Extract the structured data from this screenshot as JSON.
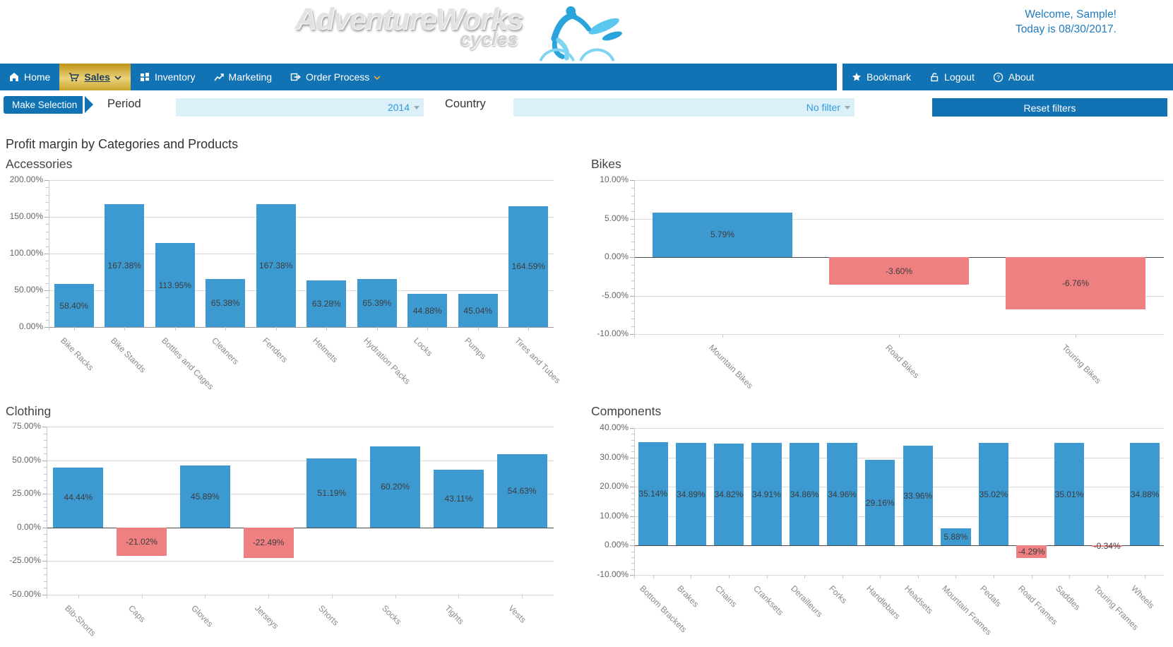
{
  "header": {
    "logo_primary": "AdventureWorks",
    "logo_secondary": "cycles",
    "welcome_line1": "Welcome, Sample!",
    "welcome_line2": "Today is 08/30/2017."
  },
  "nav": {
    "left": [
      {
        "label": "Home",
        "icon": "home-icon"
      },
      {
        "label": "Sales",
        "icon": "cart-icon"
      },
      {
        "label": "Inventory",
        "icon": "grid-icon"
      },
      {
        "label": "Marketing",
        "icon": "trend-icon"
      },
      {
        "label": "Order Process",
        "icon": "order-icon"
      }
    ],
    "right": [
      {
        "label": "Bookmark",
        "icon": "star-icon"
      },
      {
        "label": "Logout",
        "icon": "lock-icon"
      },
      {
        "label": "About",
        "icon": "question-icon"
      }
    ]
  },
  "filters": {
    "make_selection": "Make Selection",
    "period_label": "Period",
    "period_value": "2014",
    "country_label": "Country",
    "country_value": "No filter",
    "reset_label": "Reset filters"
  },
  "page_title": "Profit margin by Categories and Products",
  "colors": {
    "nav_blue": "#1173b4",
    "active_gold": "#d4af37",
    "bar_positive": "#3d9ad1",
    "bar_negative": "#ee8081",
    "dropdown_bg": "#dcf0fa",
    "link_blue": "#2f9cd6",
    "welcome_blue": "#1f7cbe"
  },
  "chart_data": [
    {
      "type": "bar",
      "title": "Accessories",
      "categories": [
        "Bike Racks",
        "Bike Stands",
        "Bottles and Cages",
        "Cleaners",
        "Fenders",
        "Helmets",
        "Hydration Packs",
        "Locks",
        "Pumps",
        "Tires and Tubes"
      ],
      "values": [
        58.4,
        167.38,
        113.95,
        65.38,
        167.38,
        63.28,
        65.39,
        44.88,
        45.04,
        164.59
      ],
      "labels": [
        "58.40%",
        "167.38%",
        "113.95%",
        "65.38%",
        "167.38%",
        "63.28%",
        "65.39%",
        "44.88%",
        "45.04%",
        "164.59%"
      ],
      "ylim": [
        0,
        200
      ],
      "ytick_major": 50,
      "ytick_minor": 10,
      "grid": true,
      "legend": false,
      "zero_line_color": "#999999",
      "xlabel": "",
      "ylabel": ""
    },
    {
      "type": "bar",
      "title": "Bikes",
      "categories": [
        "Mountain Bikes",
        "Road Bikes",
        "Touring Bikes"
      ],
      "values": [
        5.79,
        -3.6,
        -6.76
      ],
      "labels": [
        "5.79%",
        "-3.60%",
        "-6.76%"
      ],
      "ylim": [
        -10,
        10
      ],
      "ytick_major": 5,
      "ytick_minor": 1,
      "grid": true,
      "legend": false,
      "zero_line_color": "#4a4a4a",
      "xlabel": "",
      "ylabel": ""
    },
    {
      "type": "bar",
      "title": "Clothing",
      "categories": [
        "Bib-Shorts",
        "Caps",
        "Gloves",
        "Jerseys",
        "Shorts",
        "Socks",
        "Tights",
        "Vests"
      ],
      "values": [
        44.44,
        -21.02,
        45.89,
        -22.49,
        51.19,
        60.2,
        43.11,
        54.63
      ],
      "labels": [
        "44.44%",
        "-21.02%",
        "45.89%",
        "-22.49%",
        "51.19%",
        "60.20%",
        "43.11%",
        "54.63%"
      ],
      "ylim": [
        -50,
        75
      ],
      "ytick_major": 25,
      "ytick_minor": 5,
      "grid": true,
      "legend": false,
      "zero_line_color": "#4a4a4a",
      "xlabel": "",
      "ylabel": ""
    },
    {
      "type": "bar",
      "title": "Components",
      "categories": [
        "Bottom Brackets",
        "Brakes",
        "Chains",
        "Cranksets",
        "Derailleurs",
        "Forks",
        "Handlebars",
        "Headsets",
        "Mountain Frames",
        "Pedals",
        "Road Frames",
        "Saddles",
        "Touring Frames",
        "Wheels"
      ],
      "values": [
        35.14,
        34.89,
        34.82,
        34.91,
        34.86,
        34.96,
        29.16,
        33.96,
        5.88,
        35.02,
        -4.29,
        35.01,
        -0.34,
        34.88
      ],
      "labels": [
        "35.14%",
        "34.89%",
        "34.82%",
        "34.91%",
        "34.86%",
        "34.96%",
        "29.16%",
        "33.96%",
        "5.88%",
        "35.02%",
        "-4.29%",
        "35.01%",
        "-0.34%",
        "34.88%"
      ],
      "ylim": [
        -10,
        40
      ],
      "ytick_major": 10,
      "ytick_minor": 2,
      "grid": true,
      "legend": false,
      "zero_line_color": "#4a4a4a",
      "xlabel": "",
      "ylabel": ""
    }
  ]
}
